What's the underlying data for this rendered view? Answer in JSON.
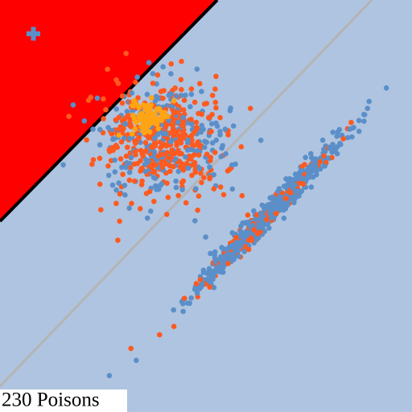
{
  "caption": "230 Poisons"
}
